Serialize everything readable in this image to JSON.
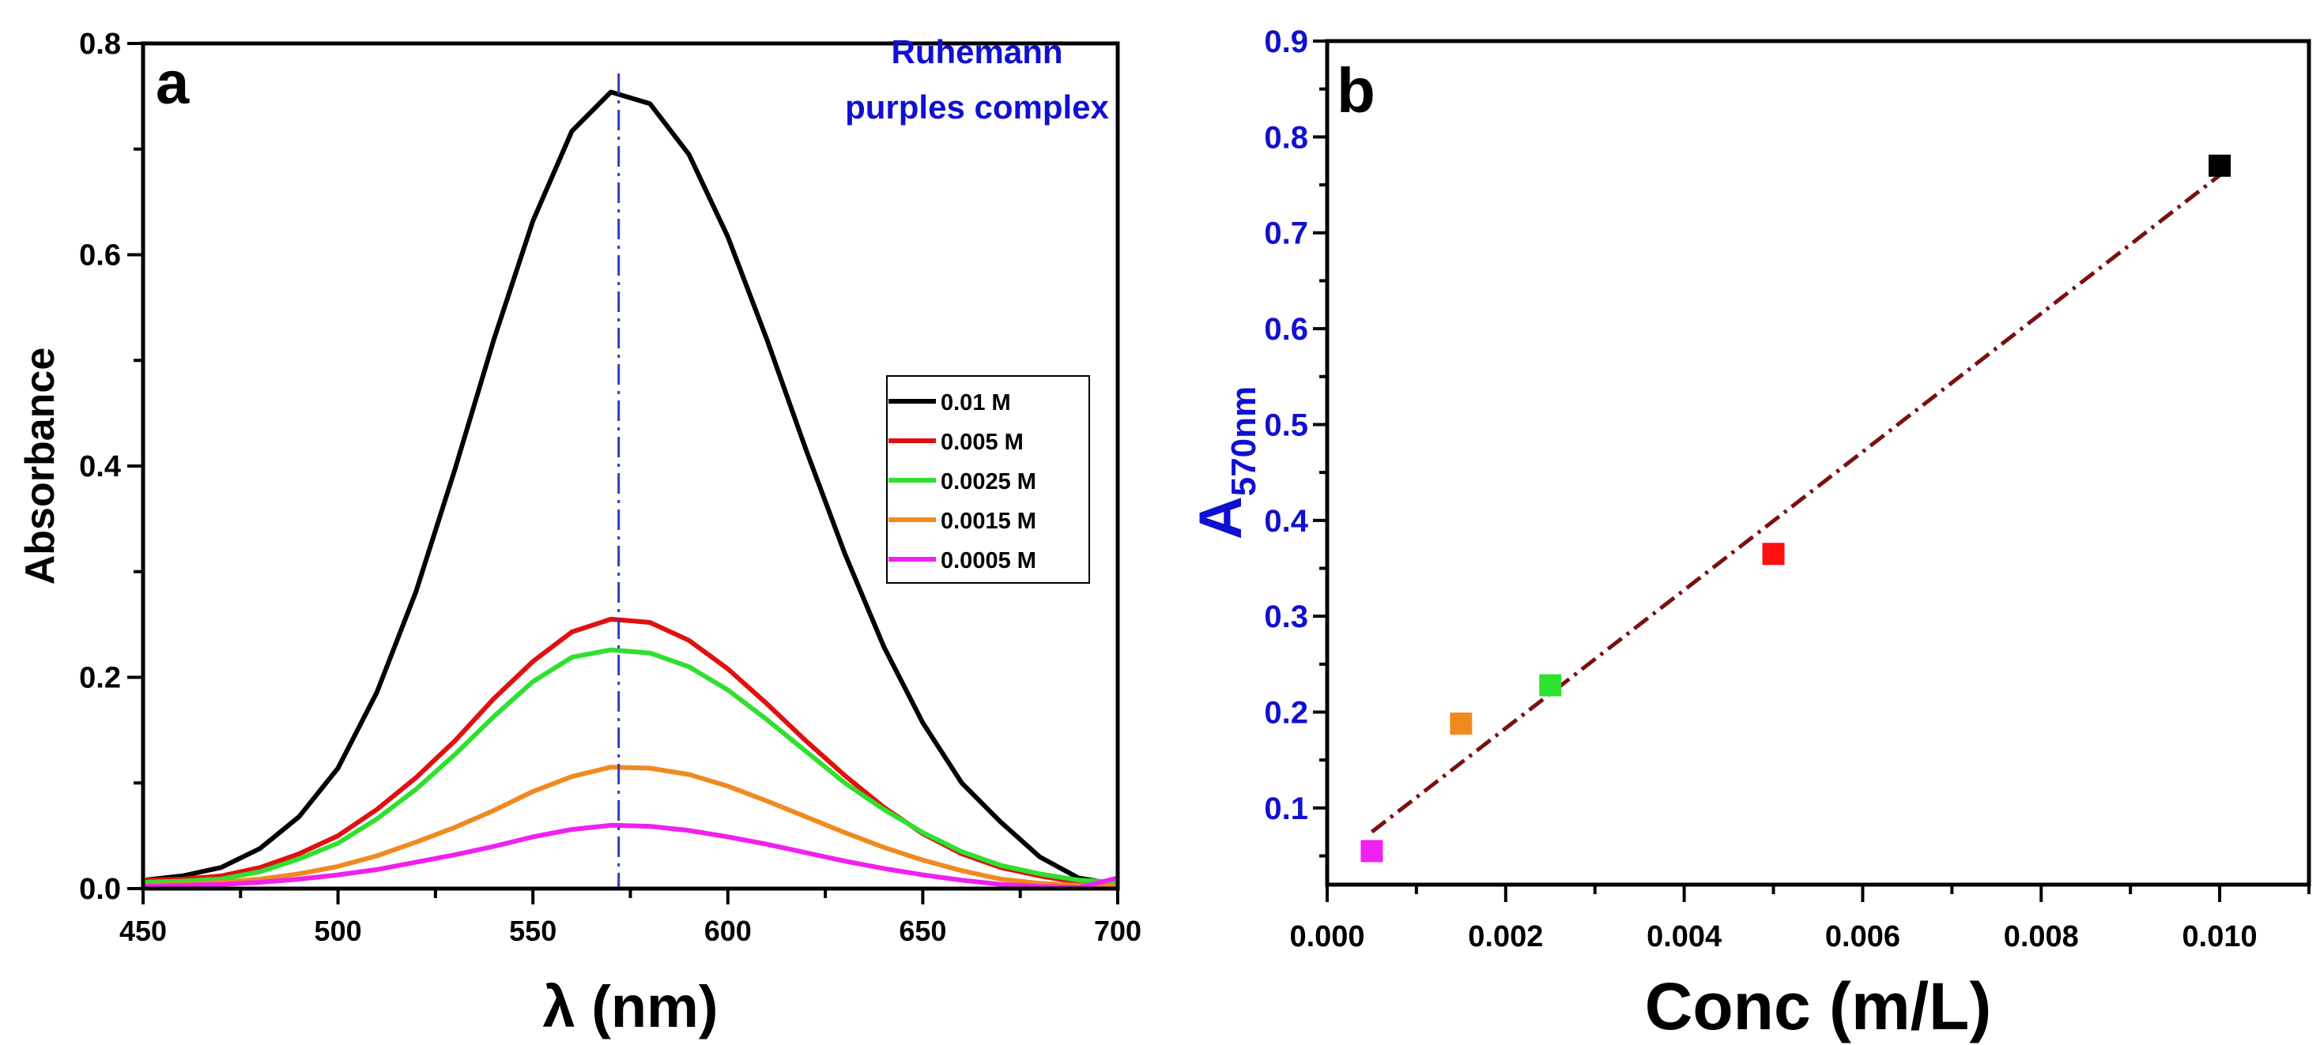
{
  "chart_data": [
    {
      "type": "line",
      "panel_label": "a",
      "xlabel": "λ (nm)",
      "ylabel": "Absorbance",
      "xlim": [
        450,
        700
      ],
      "ylim": [
        0,
        0.8
      ],
      "xticks": [
        450,
        500,
        550,
        600,
        650,
        700
      ],
      "xtick_labels": [
        "450",
        "500",
        "550",
        "600",
        "650",
        "700"
      ],
      "yticks": [
        0,
        0.2,
        0.4,
        0.6,
        0.8
      ],
      "ytick_labels": [
        "0.0",
        "0.2",
        "0.4",
        "0.6",
        "0.8"
      ],
      "annotation": [
        "Ruhemann",
        "purples complex"
      ],
      "annotation_color": "#1010d0",
      "reference_line": {
        "x": 572,
        "color": "#2a3fb8"
      },
      "legend_position": "center-right",
      "x": [
        450,
        460,
        470,
        480,
        490,
        500,
        510,
        520,
        530,
        540,
        550,
        560,
        570,
        580,
        590,
        600,
        610,
        620,
        630,
        640,
        650,
        660,
        670,
        680,
        690,
        700
      ],
      "series": [
        {
          "name": "0.01 M",
          "color": "#000000",
          "values": [
            0.008,
            0.012,
            0.02,
            0.038,
            0.068,
            0.114,
            0.186,
            0.281,
            0.397,
            0.52,
            0.632,
            0.717,
            0.754,
            0.743,
            0.695,
            0.617,
            0.52,
            0.416,
            0.317,
            0.229,
            0.157,
            0.1,
            0.063,
            0.03,
            0.01,
            0.004
          ]
        },
        {
          "name": "0.005 M",
          "color": "#e01010",
          "values": [
            0.008,
            0.009,
            0.012,
            0.02,
            0.033,
            0.05,
            0.075,
            0.105,
            0.14,
            0.18,
            0.215,
            0.243,
            0.255,
            0.252,
            0.235,
            0.208,
            0.175,
            0.14,
            0.107,
            0.077,
            0.052,
            0.033,
            0.02,
            0.012,
            0.006,
            0.004
          ]
        },
        {
          "name": "0.0025 M",
          "color": "#30e030",
          "values": [
            0.006,
            0.007,
            0.009,
            0.016,
            0.028,
            0.043,
            0.066,
            0.094,
            0.127,
            0.163,
            0.196,
            0.219,
            0.226,
            0.223,
            0.21,
            0.188,
            0.16,
            0.13,
            0.1,
            0.075,
            0.053,
            0.035,
            0.022,
            0.014,
            0.008,
            0.006
          ]
        },
        {
          "name": "0.0015 M",
          "color": "#f08a20",
          "values": [
            0.003,
            0.004,
            0.006,
            0.009,
            0.014,
            0.021,
            0.031,
            0.044,
            0.058,
            0.074,
            0.092,
            0.106,
            0.115,
            0.114,
            0.108,
            0.097,
            0.083,
            0.068,
            0.053,
            0.039,
            0.027,
            0.017,
            0.009,
            0.005,
            0.003,
            0.002
          ]
        },
        {
          "name": "0.0005 M",
          "color": "#f020f0",
          "values": [
            0.002,
            0.003,
            0.004,
            0.006,
            0.009,
            0.013,
            0.018,
            0.025,
            0.032,
            0.04,
            0.049,
            0.056,
            0.06,
            0.059,
            0.055,
            0.049,
            0.042,
            0.034,
            0.026,
            0.019,
            0.013,
            0.008,
            0.004,
            0.002,
            0.001,
            0.01
          ]
        }
      ]
    },
    {
      "type": "scatter",
      "panel_label": "b",
      "xlabel": "Conc (m/L)",
      "ylabel_main": "A",
      "ylabel_sub": "570nm",
      "ylabel_color": "#1010d0",
      "xlim": [
        0,
        0.011
      ],
      "ylim": [
        0.02,
        0.9
      ],
      "xticks": [
        0,
        0.002,
        0.004,
        0.006,
        0.008,
        0.01
      ],
      "xtick_labels": [
        "0.000",
        "0.002",
        "0.004",
        "0.006",
        "0.008",
        "0.010"
      ],
      "yticks": [
        0.1,
        0.2,
        0.3,
        0.4,
        0.5,
        0.6,
        0.7,
        0.8,
        0.9
      ],
      "ytick_labels": [
        "0.1",
        "0.2",
        "0.3",
        "0.4",
        "0.5",
        "0.6",
        "0.7",
        "0.8",
        "0.9"
      ],
      "ytick_color": "#1010d0",
      "points": [
        {
          "x": 0.0005,
          "y": 0.055,
          "color": "#f020f0"
        },
        {
          "x": 0.0015,
          "y": 0.188,
          "color": "#f08a20"
        },
        {
          "x": 0.0025,
          "y": 0.228,
          "color": "#30e030"
        },
        {
          "x": 0.005,
          "y": 0.365,
          "color": "#ff1010"
        },
        {
          "x": 0.01,
          "y": 0.77,
          "color": "#000000"
        }
      ],
      "fit_line": {
        "x": [
          0.0005,
          0.01
        ],
        "y": [
          0.075,
          0.76
        ],
        "color": "#7a1010"
      }
    }
  ]
}
